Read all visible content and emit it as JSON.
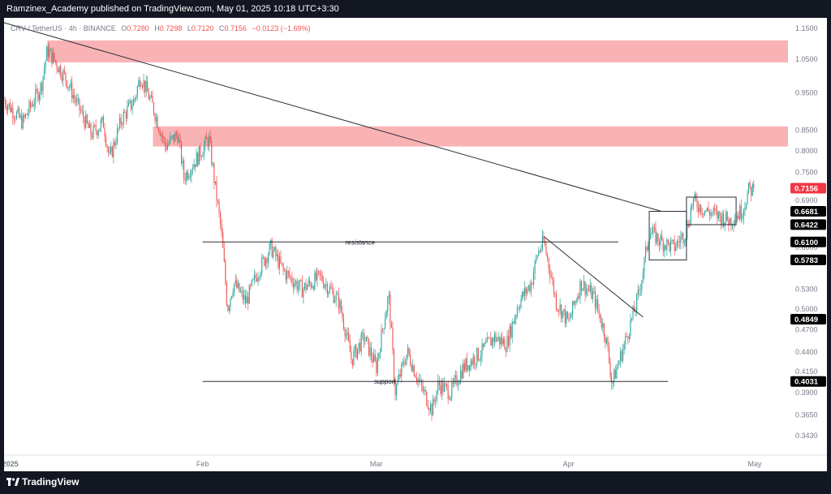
{
  "header": {
    "publisher_text": "Ramzinex_Academy published on TradingView.com, May 01, 2025 10:18 UTC+3:30"
  },
  "footer": {
    "brand": "TradingView"
  },
  "colors": {
    "up": "#26a69a",
    "down": "#ef5350",
    "zone": "#f9b3b5",
    "line": "#2a2e39",
    "current_price_tag": "#f23645"
  },
  "chart_data": {
    "type": "candlestick",
    "symbol_line": {
      "symbol": "CRV / TetherUS · 4h · BINANCE",
      "open_label": "O",
      "open": "0.7280",
      "high_label": "H",
      "high": "0.7298",
      "low_label": "L",
      "low": "0.7120",
      "close_label": "C",
      "close": "0.7156",
      "change": "−0.0123 (−1.69%)"
    },
    "y_scale": "log",
    "ylim": [
      0.335,
      1.17
    ],
    "y_ticks": [
      "1.1500",
      "1.0500",
      "0.9500",
      "0.8500",
      "0.8000",
      "0.7500",
      "0.6900",
      "0.6000",
      "0.5300",
      "0.5000",
      "0.4700",
      "0.4400",
      "0.4150",
      "0.3900",
      "0.3650",
      "0.3430"
    ],
    "x_ticks": [
      "2025",
      "Feb",
      "Mar",
      "Apr",
      "May"
    ],
    "price_tags": [
      {
        "value": 0.7156,
        "text": "0.7156",
        "kind": "current"
      },
      {
        "value": 0.6681,
        "text": "0.6681",
        "kind": "level"
      },
      {
        "value": 0.6422,
        "text": "0.6422",
        "kind": "level"
      },
      {
        "value": 0.61,
        "text": "0.6100",
        "kind": "level"
      },
      {
        "value": 0.5783,
        "text": "0.5783",
        "kind": "level"
      },
      {
        "value": 0.4849,
        "text": "0.4849",
        "kind": "level"
      },
      {
        "value": 0.4031,
        "text": "0.4031",
        "kind": "level"
      }
    ],
    "zones": [
      {
        "from_date": "2025-01-07",
        "to_date": "2025-05-13",
        "low": 1.04,
        "high": 1.11
      },
      {
        "from_date": "2025-01-24",
        "to_date": "2025-05-13",
        "low": 0.81,
        "high": 0.86
      }
    ],
    "levels": [
      {
        "label": "resistance",
        "value": 0.61,
        "from_date": "2025-02-01",
        "to_date": "2025-04-09"
      },
      {
        "label": "support",
        "value": 0.4031,
        "from_date": "2025-02-01",
        "to_date": "2025-04-17"
      }
    ],
    "trendlines": [
      {
        "from_date": "2024-12-31",
        "from_value": 1.17,
        "to_date": "2025-04-16",
        "to_value": 0.668
      },
      {
        "from_date": "2025-03-28",
        "from_value": 0.62,
        "to_date": "2025-04-13",
        "to_value": 0.488
      }
    ],
    "boxes": [
      {
        "from_date": "2025-04-14",
        "to_date": "2025-04-20",
        "low": 0.5783,
        "high": 0.6681
      },
      {
        "from_date": "2025-04-20",
        "to_date": "2025-04-28",
        "low": 0.6422,
        "high": 0.6969
      }
    ],
    "price_path": [
      [
        "2024-12-31",
        0.93
      ],
      [
        "2025-01-03",
        0.87
      ],
      [
        "2025-01-06",
        0.97
      ],
      [
        "2025-01-07",
        1.08
      ],
      [
        "2025-01-10",
        0.99
      ],
      [
        "2025-01-12",
        0.91
      ],
      [
        "2025-01-14",
        0.84
      ],
      [
        "2025-01-16",
        0.87
      ],
      [
        "2025-01-17",
        0.78
      ],
      [
        "2025-01-19",
        0.88
      ],
      [
        "2025-01-21",
        0.93
      ],
      [
        "2025-01-22",
        1.0
      ],
      [
        "2025-01-24",
        0.91
      ],
      [
        "2025-01-26",
        0.81
      ],
      [
        "2025-01-28",
        0.84
      ],
      [
        "2025-01-29",
        0.74
      ],
      [
        "2025-01-31",
        0.78
      ],
      [
        "2025-02-02",
        0.83
      ],
      [
        "2025-02-03",
        0.72
      ],
      [
        "2025-02-04",
        0.63
      ],
      [
        "2025-02-05",
        0.5
      ],
      [
        "2025-02-06",
        0.54
      ],
      [
        "2025-02-08",
        0.51
      ],
      [
        "2025-02-10",
        0.56
      ],
      [
        "2025-02-12",
        0.6
      ],
      [
        "2025-02-14",
        0.56
      ],
      [
        "2025-02-17",
        0.53
      ],
      [
        "2025-02-20",
        0.55
      ],
      [
        "2025-02-23",
        0.51
      ],
      [
        "2025-02-25",
        0.43
      ],
      [
        "2025-02-27",
        0.46
      ],
      [
        "2025-03-01",
        0.42
      ],
      [
        "2025-03-03",
        0.52
      ],
      [
        "2025-03-04",
        0.39
      ],
      [
        "2025-03-06",
        0.44
      ],
      [
        "2025-03-08",
        0.4
      ],
      [
        "2025-03-10",
        0.37
      ],
      [
        "2025-03-11",
        0.4
      ],
      [
        "2025-03-13",
        0.39
      ],
      [
        "2025-03-15",
        0.42
      ],
      [
        "2025-03-18",
        0.44
      ],
      [
        "2025-03-20",
        0.46
      ],
      [
        "2025-03-22",
        0.45
      ],
      [
        "2025-03-24",
        0.51
      ],
      [
        "2025-03-26",
        0.54
      ],
      [
        "2025-03-27",
        0.59
      ],
      [
        "2025-03-28",
        0.61
      ],
      [
        "2025-03-30",
        0.51
      ],
      [
        "2025-04-01",
        0.48
      ],
      [
        "2025-04-03",
        0.54
      ],
      [
        "2025-04-05",
        0.52
      ],
      [
        "2025-04-07",
        0.46
      ],
      [
        "2025-04-08",
        0.4
      ],
      [
        "2025-04-10",
        0.45
      ],
      [
        "2025-04-12",
        0.51
      ],
      [
        "2025-04-13",
        0.56
      ],
      [
        "2025-04-14",
        0.63
      ],
      [
        "2025-04-16",
        0.61
      ],
      [
        "2025-04-18",
        0.6
      ],
      [
        "2025-04-20",
        0.63
      ],
      [
        "2025-04-21",
        0.69
      ],
      [
        "2025-04-23",
        0.67
      ],
      [
        "2025-04-25",
        0.66
      ],
      [
        "2025-04-27",
        0.65
      ],
      [
        "2025-04-29",
        0.67
      ],
      [
        "2025-04-30",
        0.71
      ],
      [
        "2025-05-01",
        0.7156
      ]
    ]
  }
}
